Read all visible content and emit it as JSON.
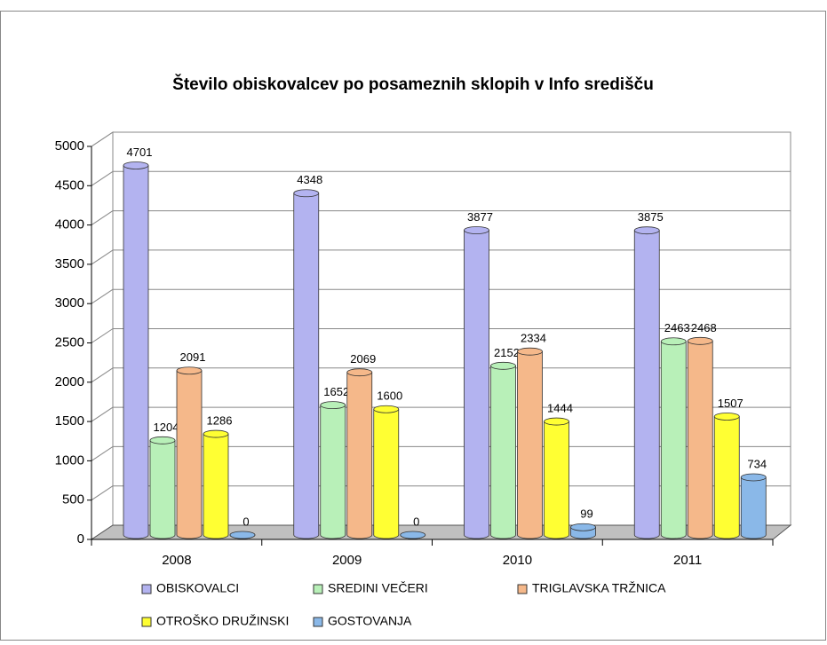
{
  "chart_data": {
    "type": "bar3d",
    "title": "Število obiskovalcev po posameznih sklopih v Info središču",
    "categories": [
      "2008",
      "2009",
      "2010",
      "2011"
    ],
    "series": [
      {
        "name": "OBISKOVALCI",
        "color": "#b3b3f0",
        "values": [
          4701,
          4348,
          3877,
          3875
        ]
      },
      {
        "name": "SREDINI VEČERI",
        "color": "#b8f0b8",
        "values": [
          1204,
          1652,
          2152,
          2463
        ]
      },
      {
        "name": "TRIGLAVSKA TRŽNICA",
        "color": "#f5b88a",
        "values": [
          2091,
          2069,
          2334,
          2468
        ]
      },
      {
        "name": "OTROŠKO DRUŽINSKI",
        "color": "#ffff33",
        "values": [
          1286,
          1600,
          1444,
          1507
        ]
      },
      {
        "name": "GOSTOVANJA",
        "color": "#8ab8e8",
        "values": [
          0,
          0,
          99,
          734
        ]
      }
    ],
    "ylim": [
      0,
      5000
    ],
    "yticks": [
      0,
      500,
      1000,
      1500,
      2000,
      2500,
      3000,
      3500,
      4000,
      4500,
      5000
    ],
    "grid": true
  }
}
